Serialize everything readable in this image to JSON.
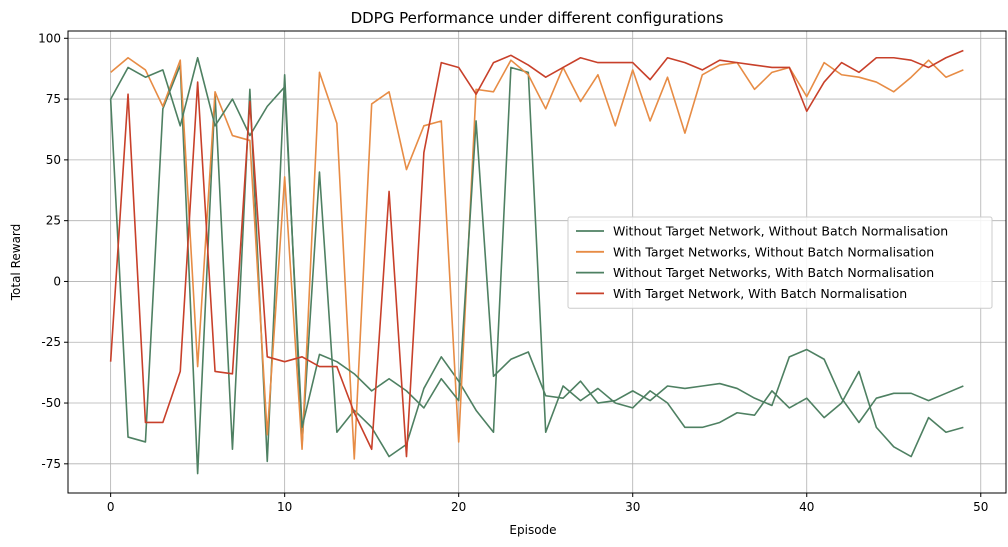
{
  "chart_data": {
    "type": "line",
    "title": "DDPG Performance under different configurations",
    "xlabel": "Episode",
    "ylabel": "Total Reward",
    "xlim": [
      -2.45,
      51.45
    ],
    "ylim": [
      -87,
      103
    ],
    "xticks": [
      0,
      10,
      20,
      30,
      40,
      50
    ],
    "yticks": [
      -75,
      -50,
      -25,
      0,
      25,
      50,
      75,
      100
    ],
    "grid": true,
    "legend_position": "center-right",
    "x": [
      0,
      1,
      2,
      3,
      4,
      5,
      6,
      7,
      8,
      9,
      10,
      11,
      12,
      13,
      14,
      15,
      16,
      17,
      18,
      19,
      20,
      21,
      22,
      23,
      24,
      25,
      26,
      27,
      28,
      29,
      30,
      31,
      32,
      33,
      34,
      35,
      36,
      37,
      38,
      39,
      40,
      41,
      42,
      43,
      44,
      45,
      46,
      47,
      48,
      49
    ],
    "series": [
      {
        "name": "Without Target Network, Without Batch Normalisation",
        "color": "#4e8062",
        "values": [
          75,
          -64,
          -66,
          71,
          89,
          -79,
          77,
          -69,
          79,
          -74,
          85,
          -67,
          45,
          -62,
          -53,
          -60,
          -72,
          -67,
          -44,
          -31,
          -41,
          -53,
          -62,
          88,
          86,
          -62,
          -43,
          -49,
          -44,
          -50,
          -52,
          -45,
          -50,
          -60,
          -60,
          -58,
          -54,
          -55,
          -45,
          -52,
          -48,
          -56,
          -50,
          -37,
          -60,
          -68,
          -72,
          -56,
          -62,
          -60
        ]
      },
      {
        "name": "With Target Networks, Without Batch Normalisation",
        "color": "#e78c45",
        "values": [
          86,
          92,
          87,
          72,
          91,
          -35,
          78,
          60,
          58,
          -63,
          43,
          -69,
          86,
          65,
          -73,
          73,
          78,
          46,
          64,
          66,
          -66,
          79,
          78,
          91,
          85,
          71,
          88,
          74,
          85,
          64,
          87,
          66,
          84,
          61,
          85,
          89,
          90,
          79,
          86,
          88,
          76,
          90,
          85,
          84,
          82,
          78,
          84,
          91,
          84,
          87
        ]
      },
      {
        "name": "Without Target Networks, With Batch Normalisation",
        "color": "#4e8062",
        "values": [
          75,
          88,
          84,
          87,
          64,
          92,
          64,
          75,
          60,
          72,
          80,
          -60,
          -30,
          -33,
          -38,
          -45,
          -40,
          -45,
          -52,
          -40,
          -49,
          66,
          -39,
          -32,
          -29,
          -47,
          -48,
          -41,
          -50,
          -49,
          -45,
          -49,
          -43,
          -44,
          -43,
          -42,
          -44,
          -48,
          -51,
          -31,
          -28,
          -32,
          -48,
          -58,
          -48,
          -46,
          -46,
          -49,
          -46,
          -43
        ]
      },
      {
        "name": "With Target Network, With Batch Normalisation",
        "color": "#c8402a",
        "values": [
          -33,
          77,
          -58,
          -58,
          -37,
          82,
          -37,
          -38,
          74,
          -31,
          -33,
          -31,
          -35,
          -35,
          -54,
          -69,
          37,
          -72,
          53,
          90,
          88,
          77,
          90,
          93,
          89,
          84,
          88,
          92,
          90,
          90,
          90,
          83,
          92,
          90,
          87,
          91,
          90,
          89,
          88,
          88,
          70,
          82,
          90,
          86,
          92,
          92,
          91,
          88,
          92,
          95
        ]
      }
    ]
  }
}
